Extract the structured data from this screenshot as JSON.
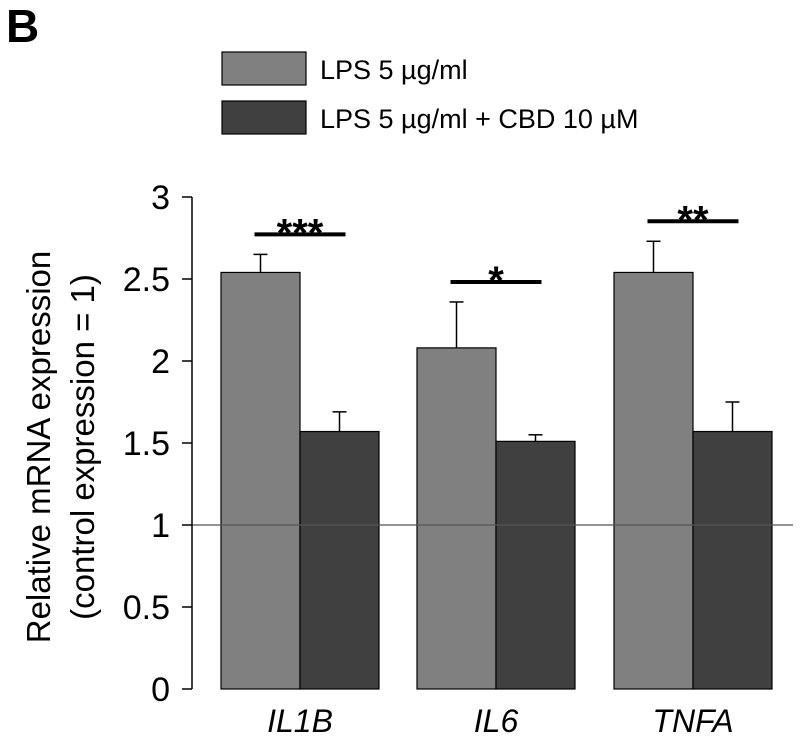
{
  "panel_label": "B",
  "colors": {
    "lps": "#808080",
    "lps_cbd": "#404040",
    "axis": "#000000",
    "baseline": "#555555",
    "background": "#ffffff"
  },
  "chart_data": {
    "type": "bar",
    "title": "",
    "xlabel": "",
    "ylabel": "Relative mRNA expression",
    "ylabel_line2": "(control expression = 1)",
    "ylim": [
      0,
      3
    ],
    "yticks": [
      "0",
      "0.5",
      "1",
      "1.5",
      "2",
      "2.5",
      "3"
    ],
    "reference_line": 1,
    "categories": [
      "IL1B",
      "IL6",
      "TNFA"
    ],
    "series": [
      {
        "name": "LPS 5 µg/ml",
        "values": [
          2.54,
          2.08,
          2.54
        ],
        "errors": [
          0.11,
          0.28,
          0.19
        ]
      },
      {
        "name": "LPS 5 µg/ml + CBD 10 µM",
        "values": [
          1.57,
          1.51,
          1.57
        ],
        "errors": [
          0.12,
          0.04,
          0.18
        ]
      }
    ],
    "significance": [
      "***",
      "*",
      "**"
    ],
    "legend": "top-center"
  }
}
